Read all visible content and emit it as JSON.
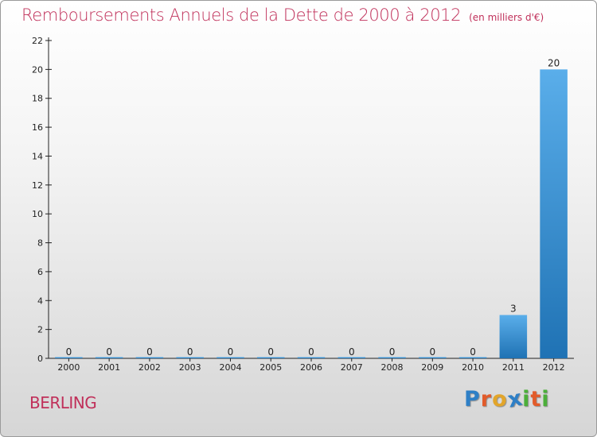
{
  "header": {
    "title": "Remboursements Annuels de la Dette de 2000 à 2012",
    "unit": "(en milliers d'€)"
  },
  "footer": {
    "commune": "BERLING",
    "logo_letters": [
      "P",
      "r",
      "o",
      "x",
      "i",
      "t",
      "i"
    ]
  },
  "colors": {
    "title": "#c0305a",
    "bar_light": "#5aaeea",
    "bar_dark": "#1f72b4",
    "logo": [
      "#2e7fc6",
      "#e25b2a",
      "#e2a52a",
      "#2e7fc6",
      "#4caf3a",
      "#e25b2a",
      "#4caf3a"
    ]
  },
  "chart_data": {
    "type": "bar",
    "title": "Remboursements Annuels de la Dette de 2000 à 2012",
    "subtitle": "(en milliers d'€)",
    "xlabel": "",
    "ylabel": "",
    "categories": [
      "2000",
      "2001",
      "2002",
      "2003",
      "2004",
      "2005",
      "2006",
      "2007",
      "2008",
      "2009",
      "2010",
      "2011",
      "2012"
    ],
    "values": [
      0,
      0,
      0,
      0,
      0,
      0,
      0,
      0,
      0,
      0,
      0,
      3,
      20
    ],
    "data_labels": [
      "0",
      "0",
      "0",
      "0",
      "0",
      "0",
      "0",
      "0",
      "0",
      "0",
      "0",
      "3",
      "20"
    ],
    "ylim": [
      0,
      22
    ],
    "yticks": [
      0,
      2,
      4,
      6,
      8,
      10,
      12,
      14,
      16,
      18,
      20,
      22
    ],
    "grid": false,
    "legend": "none"
  }
}
